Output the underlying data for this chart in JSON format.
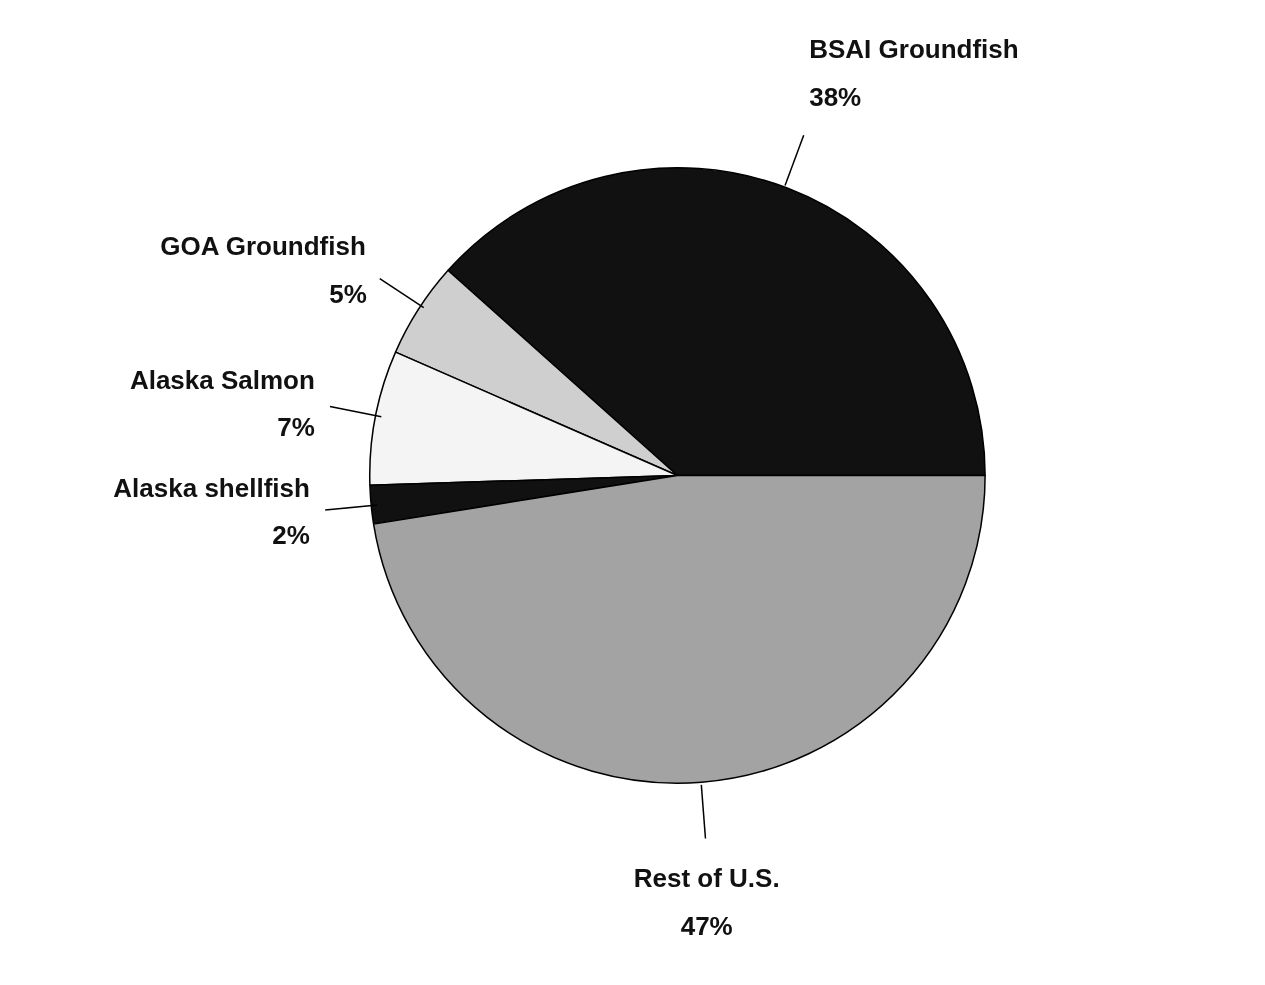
{
  "chart_data": {
    "type": "pie",
    "categories": [
      "BSAI Groundfish",
      "GOA Groundfish",
      "Alaska Salmon",
      "Alaska shellfish",
      "Rest of U.S."
    ],
    "values": [
      38,
      5,
      7,
      2,
      47
    ],
    "value_labels": [
      "38%",
      "5%",
      "7%",
      "2%",
      "47%"
    ],
    "colors": [
      "#111111",
      "#cfcfcf",
      "#f4f4f4",
      "#111111",
      "#a3a3a3"
    ]
  }
}
